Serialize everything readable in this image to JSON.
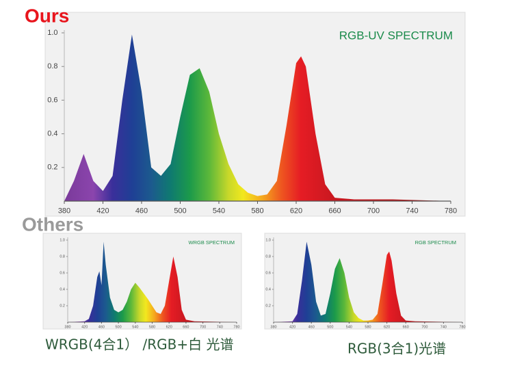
{
  "labels": {
    "ours": "Ours",
    "others": "Others"
  },
  "chart_data": [
    {
      "type": "area",
      "title": "RGB-UV SPECTRUM",
      "x": [
        380,
        390,
        400,
        410,
        420,
        430,
        440,
        450,
        460,
        470,
        480,
        490,
        500,
        510,
        520,
        530,
        540,
        550,
        560,
        570,
        580,
        590,
        600,
        610,
        620,
        625,
        630,
        640,
        650,
        660,
        680,
        720,
        780
      ],
      "values": [
        0,
        0.12,
        0.28,
        0.12,
        0.06,
        0.15,
        0.6,
        0.99,
        0.65,
        0.2,
        0.15,
        0.22,
        0.5,
        0.75,
        0.79,
        0.65,
        0.4,
        0.22,
        0.1,
        0.05,
        0.03,
        0.04,
        0.12,
        0.45,
        0.82,
        0.86,
        0.8,
        0.4,
        0.1,
        0.02,
        0.01,
        0.01,
        0
      ],
      "xlim": [
        380,
        780
      ],
      "ylim": [
        0,
        1
      ],
      "xticks": [
        380,
        420,
        460,
        500,
        540,
        580,
        620,
        660,
        700,
        740,
        780
      ],
      "yticks": [
        0.2,
        0.4,
        0.6,
        0.8,
        {
          "value": 1,
          "label": "1.0"
        }
      ]
    },
    {
      "type": "area",
      "title": "WRGB SPECTRUM",
      "caption": "WRGB(4合1） /RGB+白 光谱",
      "x": [
        380,
        420,
        430,
        440,
        450,
        455,
        460,
        465,
        470,
        480,
        490,
        500,
        510,
        520,
        530,
        540,
        550,
        560,
        570,
        580,
        590,
        600,
        610,
        620,
        630,
        640,
        650,
        660,
        680,
        780
      ],
      "values": [
        0,
        0.01,
        0.04,
        0.2,
        0.55,
        0.62,
        0.45,
        0.98,
        0.7,
        0.3,
        0.15,
        0.12,
        0.15,
        0.25,
        0.4,
        0.48,
        0.42,
        0.35,
        0.28,
        0.2,
        0.12,
        0.1,
        0.2,
        0.5,
        0.8,
        0.55,
        0.15,
        0.03,
        0.01,
        0
      ],
      "xlim": [
        380,
        780
      ],
      "ylim": [
        0,
        1
      ],
      "xticks": [
        380,
        420,
        460,
        500,
        540,
        580,
        620,
        660,
        700,
        740,
        780
      ],
      "yticks": [
        0.2,
        0.4,
        0.6,
        0.8,
        {
          "value": 1,
          "label": "1.0"
        }
      ]
    },
    {
      "type": "area",
      "title": "RGB SPECTRUM",
      "caption": "RGB(3合1)光谱",
      "x": [
        380,
        420,
        430,
        440,
        450,
        460,
        470,
        480,
        490,
        500,
        510,
        520,
        530,
        540,
        550,
        560,
        570,
        580,
        590,
        600,
        610,
        620,
        625,
        630,
        640,
        650,
        660,
        680,
        780
      ],
      "values": [
        0,
        0.01,
        0.1,
        0.5,
        0.98,
        0.7,
        0.25,
        0.08,
        0.1,
        0.35,
        0.65,
        0.78,
        0.6,
        0.3,
        0.12,
        0.05,
        0.02,
        0.02,
        0.03,
        0.1,
        0.45,
        0.82,
        0.86,
        0.75,
        0.35,
        0.08,
        0.02,
        0.01,
        0
      ],
      "xlim": [
        380,
        780
      ],
      "ylim": [
        0,
        1
      ],
      "xticks": [
        380,
        420,
        460,
        500,
        540,
        580,
        620,
        660,
        700,
        740,
        780
      ],
      "yticks": [
        0.2,
        0.4,
        0.6,
        0.8,
        {
          "value": 1,
          "label": "1.0"
        }
      ]
    }
  ]
}
